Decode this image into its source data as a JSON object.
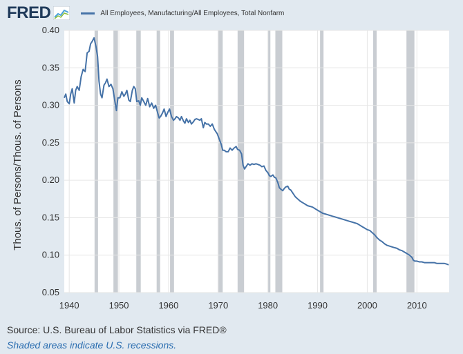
{
  "header": {
    "logo_text": "FRED",
    "logo_icon": "chart-line-icon",
    "legend_label": "All Employees, Manufacturing/All Employees, Total Nonfarm",
    "line_color": "#4572a7"
  },
  "footer": {
    "source": "Source: U.S. Bureau of Labor Statistics via FRED®",
    "note": "Shaded areas indicate U.S. recessions."
  },
  "chart_data": {
    "type": "line",
    "title": "",
    "xlabel": "",
    "ylabel": "Thous. of Persons/Thous. of Persons",
    "xlim": [
      1939,
      2016.5
    ],
    "ylim": [
      0.05,
      0.4
    ],
    "x_ticks": [
      1940,
      1950,
      1960,
      1970,
      1980,
      1990,
      2000,
      2010
    ],
    "y_ticks": [
      0.05,
      0.1,
      0.15,
      0.2,
      0.25,
      0.3,
      0.35,
      0.4
    ],
    "y_tick_labels": [
      "0.05",
      "0.10",
      "0.15",
      "0.20",
      "0.25",
      "0.30",
      "0.35",
      "0.40"
    ],
    "grid": true,
    "recession_color": "#c9cdd2",
    "recessions": [
      [
        1945.1,
        1945.8
      ],
      [
        1948.9,
        1949.8
      ],
      [
        1953.5,
        1954.4
      ],
      [
        1957.6,
        1958.3
      ],
      [
        1960.3,
        1961.1
      ],
      [
        1969.9,
        1970.9
      ],
      [
        1973.9,
        1975.2
      ],
      [
        1980.0,
        1980.5
      ],
      [
        1981.5,
        1982.9
      ],
      [
        1990.5,
        1991.2
      ],
      [
        2001.2,
        2001.9
      ],
      [
        2007.9,
        2009.5
      ]
    ],
    "series": [
      {
        "name": "All Employees, Manufacturing/All Employees, Total Nonfarm",
        "color": "#4572a7",
        "x": [
          1939.0,
          1939.3,
          1939.6,
          1940.0,
          1940.3,
          1940.6,
          1941.0,
          1941.3,
          1941.6,
          1942.0,
          1942.4,
          1942.8,
          1943.2,
          1943.6,
          1944.0,
          1944.3,
          1944.6,
          1945.0,
          1945.4,
          1945.7,
          1946.0,
          1946.3,
          1946.6,
          1947.0,
          1947.3,
          1947.6,
          1948.0,
          1948.4,
          1948.8,
          1949.2,
          1949.5,
          1949.8,
          1950.2,
          1950.6,
          1951.0,
          1951.3,
          1951.6,
          1952.0,
          1952.3,
          1952.7,
          1953.0,
          1953.3,
          1953.6,
          1954.0,
          1954.3,
          1954.6,
          1955.0,
          1955.4,
          1955.8,
          1956.2,
          1956.6,
          1957.0,
          1957.4,
          1957.8,
          1958.1,
          1958.4,
          1958.8,
          1959.1,
          1959.5,
          1959.8,
          1960.2,
          1960.6,
          1961.0,
          1961.3,
          1961.6,
          1962.0,
          1962.3,
          1962.6,
          1963.0,
          1963.3,
          1963.6,
          1964.0,
          1964.3,
          1964.6,
          1965.0,
          1965.3,
          1965.6,
          1966.0,
          1966.3,
          1966.6,
          1967.0,
          1967.3,
          1967.6,
          1968.0,
          1968.4,
          1968.8,
          1969.2,
          1969.5,
          1969.8,
          1970.2,
          1970.6,
          1970.9,
          1971.2,
          1971.6,
          1972.0,
          1972.4,
          1972.8,
          1973.2,
          1973.6,
          1973.9,
          1974.3,
          1974.7,
          1975.0,
          1975.3,
          1975.6,
          1976.0,
          1976.4,
          1976.8,
          1977.2,
          1977.6,
          1978.0,
          1978.4,
          1978.8,
          1979.2,
          1979.6,
          1980.0,
          1980.3,
          1980.6,
          1981.0,
          1981.3,
          1981.6,
          1982.0,
          1982.3,
          1982.6,
          1983.0,
          1983.3,
          1983.6,
          1984.0,
          1984.3,
          1984.6,
          1985.0,
          1985.5,
          1986.0,
          1986.5,
          1987.0,
          1987.5,
          1988.0,
          1988.5,
          1989.0,
          1989.5,
          1990.0,
          1990.5,
          1991.0,
          1991.5,
          1992.0,
          1992.5,
          1993.0,
          1993.5,
          1994.0,
          1994.5,
          1995.0,
          1995.5,
          1996.0,
          1996.5,
          1997.0,
          1997.5,
          1998.0,
          1998.5,
          1999.0,
          1999.5,
          2000.0,
          2000.5,
          2001.0,
          2001.5,
          2002.0,
          2002.5,
          2003.0,
          2003.5,
          2004.0,
          2004.5,
          2005.0,
          2005.5,
          2006.0,
          2006.5,
          2007.0,
          2007.5,
          2008.0,
          2008.5,
          2009.0,
          2009.3,
          2009.6,
          2010.0,
          2010.5,
          2011.0,
          2011.5,
          2012.0,
          2012.5,
          2013.0,
          2013.5,
          2014.0,
          2014.5,
          2015.0,
          2015.5,
          2016.0,
          2016.4
        ],
        "values": [
          0.31,
          0.315,
          0.305,
          0.302,
          0.315,
          0.322,
          0.303,
          0.32,
          0.325,
          0.32,
          0.338,
          0.348,
          0.345,
          0.37,
          0.372,
          0.382,
          0.385,
          0.39,
          0.378,
          0.365,
          0.332,
          0.315,
          0.31,
          0.327,
          0.33,
          0.335,
          0.325,
          0.328,
          0.322,
          0.305,
          0.293,
          0.31,
          0.31,
          0.318,
          0.312,
          0.315,
          0.32,
          0.307,
          0.305,
          0.32,
          0.325,
          0.322,
          0.305,
          0.306,
          0.3,
          0.31,
          0.305,
          0.3,
          0.309,
          0.298,
          0.303,
          0.296,
          0.3,
          0.29,
          0.283,
          0.285,
          0.29,
          0.295,
          0.285,
          0.29,
          0.295,
          0.285,
          0.28,
          0.282,
          0.285,
          0.283,
          0.28,
          0.285,
          0.279,
          0.276,
          0.282,
          0.277,
          0.28,
          0.275,
          0.278,
          0.281,
          0.282,
          0.281,
          0.28,
          0.282,
          0.27,
          0.277,
          0.275,
          0.275,
          0.272,
          0.275,
          0.268,
          0.265,
          0.262,
          0.255,
          0.248,
          0.24,
          0.24,
          0.238,
          0.238,
          0.243,
          0.24,
          0.243,
          0.245,
          0.241,
          0.24,
          0.235,
          0.22,
          0.215,
          0.218,
          0.222,
          0.22,
          0.222,
          0.221,
          0.222,
          0.221,
          0.22,
          0.218,
          0.219,
          0.213,
          0.21,
          0.206,
          0.205,
          0.207,
          0.204,
          0.203,
          0.197,
          0.19,
          0.188,
          0.186,
          0.189,
          0.191,
          0.192,
          0.188,
          0.187,
          0.183,
          0.178,
          0.175,
          0.172,
          0.17,
          0.168,
          0.166,
          0.165,
          0.164,
          0.162,
          0.16,
          0.158,
          0.156,
          0.155,
          0.154,
          0.153,
          0.152,
          0.151,
          0.15,
          0.149,
          0.148,
          0.147,
          0.146,
          0.145,
          0.144,
          0.143,
          0.142,
          0.14,
          0.138,
          0.136,
          0.134,
          0.133,
          0.13,
          0.127,
          0.123,
          0.12,
          0.118,
          0.115,
          0.113,
          0.112,
          0.111,
          0.11,
          0.109,
          0.107,
          0.106,
          0.104,
          0.102,
          0.1,
          0.097,
          0.093,
          0.092,
          0.092,
          0.091,
          0.091,
          0.09,
          0.09,
          0.09,
          0.09,
          0.09,
          0.089,
          0.089,
          0.089,
          0.089,
          0.088,
          0.087
        ]
      }
    ]
  }
}
